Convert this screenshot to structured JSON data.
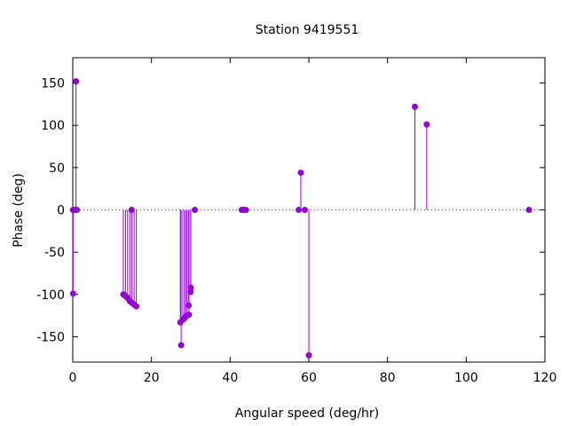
{
  "chart_data": {
    "type": "scatter",
    "title": "Station 9419551",
    "xlabel": "Angular speed (deg/hr)",
    "ylabel": "Phase (deg)",
    "xlim": [
      0,
      120
    ],
    "ylim": [
      -180,
      180
    ],
    "xticks": [
      0,
      20,
      40,
      60,
      80,
      100,
      120
    ],
    "yticks": [
      -150,
      -100,
      -50,
      0,
      50,
      100,
      150
    ],
    "color": "#9400d3",
    "zero_line": "dotted",
    "grid": false,
    "style": "impulses with points",
    "points": [
      {
        "x": 0.04,
        "y": 0
      },
      {
        "x": 0.08,
        "y": -99
      },
      {
        "x": 0.54,
        "y": 0
      },
      {
        "x": 0.82,
        "y": 152
      },
      {
        "x": 1.02,
        "y": 0
      },
      {
        "x": 12.85,
        "y": -100
      },
      {
        "x": 13.4,
        "y": -102
      },
      {
        "x": 13.94,
        "y": -104
      },
      {
        "x": 14.5,
        "y": -108
      },
      {
        "x": 14.96,
        "y": 0
      },
      {
        "x": 15.04,
        "y": -110
      },
      {
        "x": 15.59,
        "y": -112
      },
      {
        "x": 16.14,
        "y": -114
      },
      {
        "x": 27.34,
        "y": -133
      },
      {
        "x": 27.54,
        "y": -160
      },
      {
        "x": 27.97,
        "y": -130
      },
      {
        "x": 28.44,
        "y": -128
      },
      {
        "x": 28.51,
        "y": -127
      },
      {
        "x": 28.98,
        "y": -125
      },
      {
        "x": 29.46,
        "y": -113
      },
      {
        "x": 29.53,
        "y": -124
      },
      {
        "x": 29.96,
        "y": -97
      },
      {
        "x": 30.0,
        "y": -92
      },
      {
        "x": 31.02,
        "y": 0
      },
      {
        "x": 42.93,
        "y": 0
      },
      {
        "x": 43.48,
        "y": 0
      },
      {
        "x": 44.03,
        "y": 0
      },
      {
        "x": 57.42,
        "y": 0
      },
      {
        "x": 57.97,
        "y": 44
      },
      {
        "x": 58.98,
        "y": 0
      },
      {
        "x": 60.0,
        "y": -172
      },
      {
        "x": 86.95,
        "y": 122
      },
      {
        "x": 89.96,
        "y": 101
      },
      {
        "x": 115.94,
        "y": 0
      }
    ]
  }
}
